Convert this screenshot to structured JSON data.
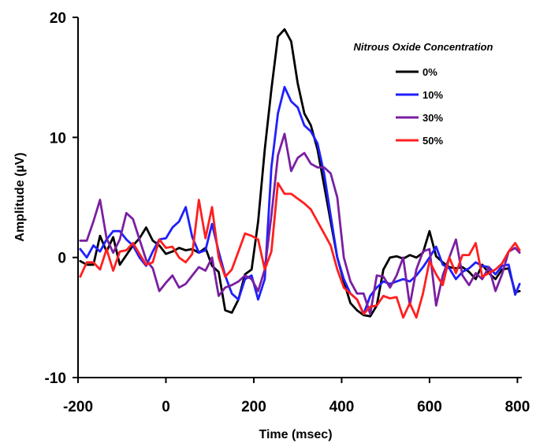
{
  "chart_data": {
    "type": "line",
    "title": "",
    "xlabel": "Time (msec)",
    "ylabel": "Amplitude (µV)",
    "xlim": [
      -200,
      810
    ],
    "ylim": [
      -10,
      20
    ],
    "x_ticks": [
      "-200",
      "0",
      "200",
      "400",
      "600",
      "800"
    ],
    "y_ticks": [
      "-10",
      "0",
      "10",
      "20"
    ],
    "grid": false,
    "legend": {
      "title": "Nitrous Oxide Concentration",
      "position": "top-right"
    },
    "series": [
      {
        "name": "0%",
        "color": "#000000",
        "x": [
          -195,
          -180,
          -165,
          -150,
          -135,
          -120,
          -105,
          -90,
          -75,
          -60,
          -45,
          -30,
          -15,
          0,
          15,
          30,
          45,
          60,
          75,
          90,
          105,
          120,
          135,
          150,
          165,
          180,
          195,
          210,
          225,
          240,
          255,
          270,
          285,
          300,
          315,
          330,
          345,
          360,
          375,
          390,
          405,
          420,
          435,
          450,
          465,
          480,
          495,
          510,
          525,
          540,
          555,
          570,
          585,
          600,
          615,
          630,
          645,
          660,
          675,
          690,
          705,
          720,
          735,
          750,
          765,
          780,
          795,
          805
        ],
        "y": [
          -0.3,
          -0.6,
          -0.6,
          1.8,
          0.5,
          1.7,
          -0.6,
          0.2,
          1.0,
          1.6,
          2.5,
          1.4,
          1.0,
          0.3,
          0.5,
          0.8,
          0.6,
          0.7,
          0.4,
          0.8,
          -0.7,
          -1.2,
          -4.4,
          -4.6,
          -3.5,
          -1.4,
          -1.0,
          3.0,
          9.0,
          14.0,
          18.4,
          19.0,
          18.0,
          14.5,
          12.0,
          11.0,
          9.0,
          6.0,
          3.0,
          0.0,
          -2.0,
          -3.8,
          -4.4,
          -4.8,
          -4.9,
          -4.0,
          -1.0,
          0.0,
          0.1,
          -0.1,
          0.2,
          0.0,
          0.4,
          2.2,
          0.1,
          -0.4,
          -0.8,
          -0.9,
          -0.8,
          -1.2,
          -1.8,
          -0.6,
          -1.3,
          -1.8,
          -1.0,
          -0.9,
          -2.9,
          -2.8
        ]
      },
      {
        "name": "10%",
        "color": "#1f1fff",
        "x": [
          -195,
          -180,
          -165,
          -150,
          -135,
          -120,
          -105,
          -90,
          -75,
          -60,
          -45,
          -30,
          -15,
          0,
          15,
          30,
          45,
          60,
          75,
          90,
          105,
          120,
          135,
          150,
          165,
          180,
          195,
          210,
          225,
          240,
          255,
          270,
          285,
          300,
          315,
          330,
          345,
          360,
          375,
          390,
          405,
          420,
          435,
          450,
          465,
          480,
          495,
          510,
          525,
          540,
          555,
          570,
          585,
          600,
          615,
          630,
          645,
          660,
          675,
          690,
          705,
          720,
          735,
          750,
          765,
          780,
          795,
          805
        ],
        "y": [
          0.7,
          0.0,
          1.0,
          0.5,
          1.5,
          2.2,
          2.2,
          1.5,
          1.0,
          0.0,
          -0.7,
          0.5,
          1.5,
          1.6,
          2.5,
          3.0,
          4.2,
          1.7,
          0.4,
          0.6,
          2.8,
          0.5,
          -1.5,
          -3.0,
          -3.5,
          -1.8,
          -1.5,
          -3.5,
          -1.8,
          7.5,
          12.0,
          14.2,
          13.0,
          12.5,
          11.0,
          10.5,
          9.5,
          7.0,
          3.5,
          0.0,
          -1.8,
          -3.0,
          -3.5,
          -4.7,
          -3.2,
          -2.5,
          -2.0,
          -2.2,
          -2.0,
          -1.8,
          -2.0,
          -1.5,
          -0.8,
          0.0,
          0.9,
          -0.6,
          -0.9,
          -1.8,
          -1.2,
          -0.9,
          -0.4,
          -0.7,
          -0.8,
          -1.4,
          -0.7,
          -0.6,
          -3.1,
          -2.2
        ]
      },
      {
        "name": "30%",
        "color": "#7a1fa2",
        "x": [
          -195,
          -180,
          -165,
          -150,
          -135,
          -120,
          -105,
          -90,
          -75,
          -60,
          -45,
          -30,
          -15,
          0,
          15,
          30,
          45,
          60,
          75,
          90,
          105,
          120,
          135,
          150,
          165,
          180,
          195,
          210,
          225,
          240,
          255,
          270,
          285,
          300,
          315,
          330,
          345,
          360,
          375,
          390,
          405,
          420,
          435,
          450,
          465,
          480,
          495,
          510,
          525,
          540,
          555,
          570,
          585,
          600,
          615,
          630,
          645,
          660,
          675,
          690,
          705,
          720,
          735,
          750,
          765,
          780,
          795,
          805
        ],
        "y": [
          1.4,
          1.4,
          3.0,
          4.8,
          1.6,
          0.4,
          1.5,
          3.7,
          3.2,
          1.5,
          -0.2,
          -0.9,
          -2.8,
          -2.1,
          -1.5,
          -2.5,
          -2.2,
          -1.5,
          -0.8,
          -1.1,
          0.0,
          -3.2,
          -2.5,
          -2.3,
          -2.0,
          -1.5,
          -1.8,
          -2.8,
          -1.0,
          3.5,
          8.5,
          10.3,
          7.2,
          8.3,
          8.7,
          7.8,
          7.5,
          7.5,
          7.0,
          5.0,
          0.0,
          -2.0,
          -3.0,
          -3.0,
          -4.7,
          -1.5,
          -1.6,
          -2.5,
          -1.5,
          0.0,
          -4.0,
          -1.0,
          0.5,
          0.7,
          -4.0,
          -1.5,
          0.0,
          1.5,
          -1.5,
          -2.3,
          -1.3,
          -1.8,
          -0.8,
          -2.8,
          -1.4,
          0.5,
          0.8,
          0.4
        ]
      },
      {
        "name": "50%",
        "color": "#ff1f1f",
        "x": [
          -195,
          -180,
          -165,
          -150,
          -135,
          -120,
          -105,
          -90,
          -75,
          -60,
          -45,
          -30,
          -15,
          0,
          15,
          30,
          45,
          60,
          75,
          90,
          105,
          120,
          135,
          150,
          165,
          180,
          195,
          210,
          225,
          240,
          255,
          270,
          285,
          300,
          315,
          330,
          345,
          360,
          375,
          390,
          405,
          420,
          435,
          450,
          465,
          480,
          495,
          510,
          525,
          540,
          555,
          570,
          585,
          600,
          615,
          630,
          645,
          660,
          675,
          690,
          705,
          720,
          735,
          750,
          765,
          780,
          795,
          805
        ],
        "y": [
          -1.6,
          -0.4,
          -0.4,
          -1.0,
          0.7,
          -1.1,
          0.5,
          0.6,
          1.2,
          0.3,
          -0.6,
          -0.4,
          1.5,
          0.8,
          0.9,
          0.0,
          -0.4,
          0.3,
          4.8,
          1.6,
          4.2,
          0.0,
          -1.6,
          -1.0,
          0.5,
          2.0,
          1.8,
          1.5,
          -1.0,
          0.5,
          6.2,
          5.3,
          5.3,
          4.9,
          4.5,
          4.0,
          3.0,
          2.0,
          1.0,
          -1.0,
          -2.5,
          -3.0,
          -3.5,
          -4.7,
          -4.1,
          -4.0,
          -3.2,
          -3.4,
          -3.3,
          -5.0,
          -3.8,
          -5.0,
          -3.0,
          -0.3,
          -1.4,
          -2.3,
          0.0,
          -1.3,
          0.2,
          0.2,
          1.2,
          -1.6,
          -1.3,
          -1.0,
          -0.5,
          0.5,
          1.2,
          0.6
        ]
      }
    ]
  }
}
